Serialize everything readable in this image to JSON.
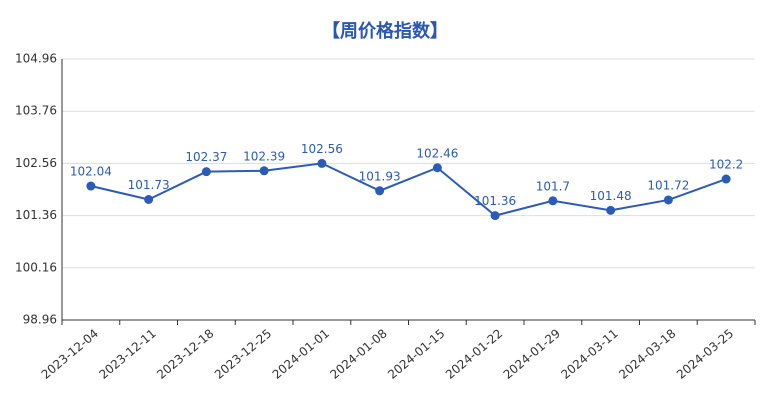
{
  "chart_data": {
    "type": "line",
    "title": "【周价格指数】",
    "categories": [
      "2023-12-04",
      "2023-12-11",
      "2023-12-18",
      "2023-12-25",
      "2024-01-01",
      "2024-01-08",
      "2024-01-15",
      "2024-01-22",
      "2024-01-29",
      "2024-03-11",
      "2024-03-18",
      "2024-03-25"
    ],
    "values": [
      102.04,
      101.73,
      102.37,
      102.39,
      102.56,
      101.93,
      102.46,
      101.36,
      101.7,
      101.48,
      101.72,
      102.2
    ],
    "color": "#2b5bb8",
    "ylim": [
      98.96,
      104.96
    ],
    "yticks": [
      98.96,
      100.16,
      101.36,
      102.56,
      103.76,
      104.96
    ],
    "grid": true
  }
}
